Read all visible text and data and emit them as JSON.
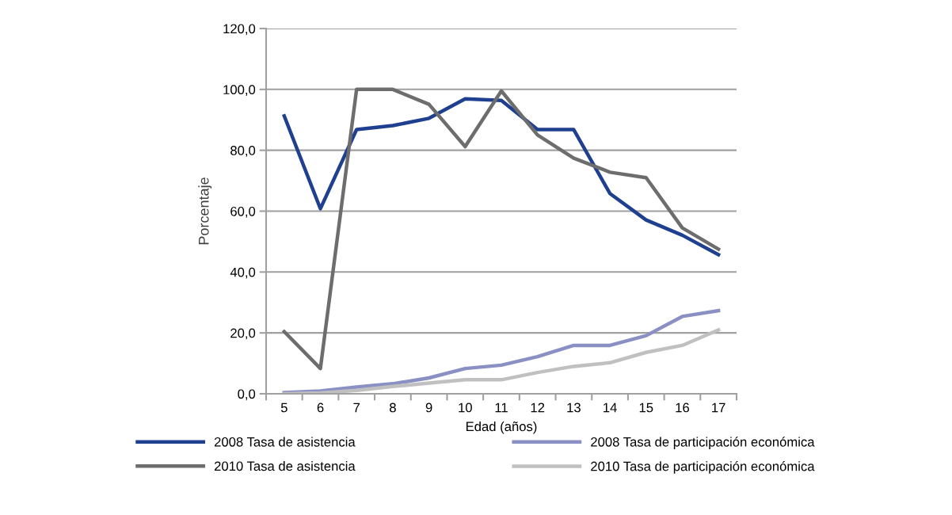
{
  "chart_data": {
    "type": "line",
    "xlabel": "Edad (años)",
    "ylabel": "Porcentaje",
    "categories": [
      "5",
      "6",
      "7",
      "8",
      "9",
      "10",
      "11",
      "12",
      "13",
      "14",
      "15",
      "16",
      "17"
    ],
    "series": [
      {
        "name": "2008 Tasa de asistencia",
        "color": "#1f3f8f",
        "values": [
          91.3,
          60.8,
          86.8,
          88.1,
          90.5,
          96.9,
          96.4,
          86.8,
          86.8,
          65.8,
          57.1,
          52.1,
          45.7
        ]
      },
      {
        "name": "2010 Tasa de asistencia",
        "color": "#6d6d6d",
        "values": [
          20.4,
          8.3,
          100,
          100,
          95.1,
          81.2,
          99.5,
          85.0,
          77.4,
          72.8,
          71.0,
          54.5,
          47.5
        ]
      },
      {
        "name": "2008 Tasa de participación económica",
        "color": "#8a8fc4",
        "values": [
          0.4,
          0.9,
          2.2,
          3.3,
          5.2,
          8.3,
          9.4,
          12.2,
          15.9,
          15.9,
          19.1,
          25.4,
          27.3
        ]
      },
      {
        "name": "2010 Tasa de participación económica",
        "color": "#c0c0c0",
        "values": [
          0.0,
          0.3,
          1.1,
          2.4,
          3.5,
          4.6,
          4.6,
          7.0,
          9.0,
          10.2,
          13.6,
          15.9,
          21.0
        ]
      }
    ],
    "ylim": [
      0,
      120
    ],
    "yticks": [
      {
        "value": 0,
        "label": "0,0"
      },
      {
        "value": 20,
        "label": "20,0"
      },
      {
        "value": 40,
        "label": "40,0"
      },
      {
        "value": 60,
        "label": "60,0"
      },
      {
        "value": 80,
        "label": "80,0"
      },
      {
        "value": 100,
        "label": "100,0"
      },
      {
        "value": 120,
        "label": "120,0"
      }
    ],
    "grid": "y",
    "legend": "bottom",
    "marker": "none",
    "line_style": "solid"
  }
}
